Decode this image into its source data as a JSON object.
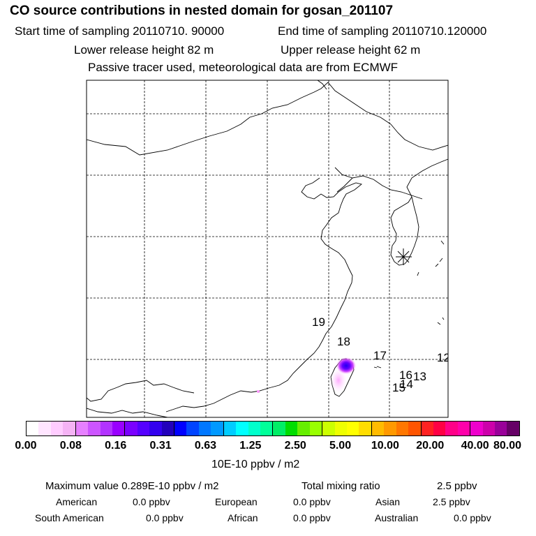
{
  "header": {
    "title": "CO  source contributions in nested domain for gosan_201107",
    "start_label": "Start time of sampling 20110710. 90000",
    "end_label": "End time of sampling 20110710.120000",
    "lower_label": "Lower release height   82 m",
    "upper_label": "Upper release height   62 m",
    "note": "Passive tracer used, meteorological data are from ECMWF"
  },
  "map": {
    "receptor": "gosan",
    "source_marker": "asterisk-icon",
    "labels": [
      "19",
      "18",
      "17",
      "16",
      "15",
      "14",
      "13",
      "12"
    ],
    "plume_colors": [
      "#ff99ff",
      "#cc44ff",
      "#6600ff",
      "#2200ee"
    ]
  },
  "colorbar": {
    "colors": [
      "#ffffff",
      "#ffe5ff",
      "#ffccff",
      "#f5b3f5",
      "#e680ff",
      "#cc55ff",
      "#b233ff",
      "#9900ff",
      "#7a00ff",
      "#5500ff",
      "#3300ee",
      "#2200bb",
      "#0000ff",
      "#0044ff",
      "#0077ff",
      "#0099ff",
      "#00ccff",
      "#00ffff",
      "#00ffcc",
      "#00ff99",
      "#00ee66",
      "#00dd00",
      "#66ee00",
      "#99ff00",
      "#ccff00",
      "#eeff00",
      "#ffff00",
      "#ffdd00",
      "#ffbb00",
      "#ff9900",
      "#ff7700",
      "#ff5500",
      "#ff2222",
      "#ff0044",
      "#ff0088",
      "#ff00aa",
      "#ee00cc",
      "#cc00aa",
      "#990099",
      "#660066"
    ],
    "labels": [
      "0.00",
      "0.08",
      "0.16",
      "0.31",
      "0.63",
      "1.25",
      "2.50",
      "5.00",
      "10.00",
      "20.00",
      "40.00",
      "80.00"
    ],
    "unit": "10E-10 ppbv / m2"
  },
  "summary": {
    "max_value": "Maximum value  0.289E-10 ppbv / m2",
    "total_mixing": "Total mixing ratio",
    "total_value": "2.5 ppbv",
    "regions": [
      {
        "name": "American",
        "value": "0.0 ppbv"
      },
      {
        "name": "European",
        "value": "0.0 ppbv"
      },
      {
        "name": "Asian",
        "value": "2.5 ppbv"
      },
      {
        "name": "South American",
        "value": "0.0 ppbv"
      },
      {
        "name": "African",
        "value": "0.0 ppbv"
      },
      {
        "name": "Australian",
        "value": "0.0 ppbv"
      }
    ]
  }
}
